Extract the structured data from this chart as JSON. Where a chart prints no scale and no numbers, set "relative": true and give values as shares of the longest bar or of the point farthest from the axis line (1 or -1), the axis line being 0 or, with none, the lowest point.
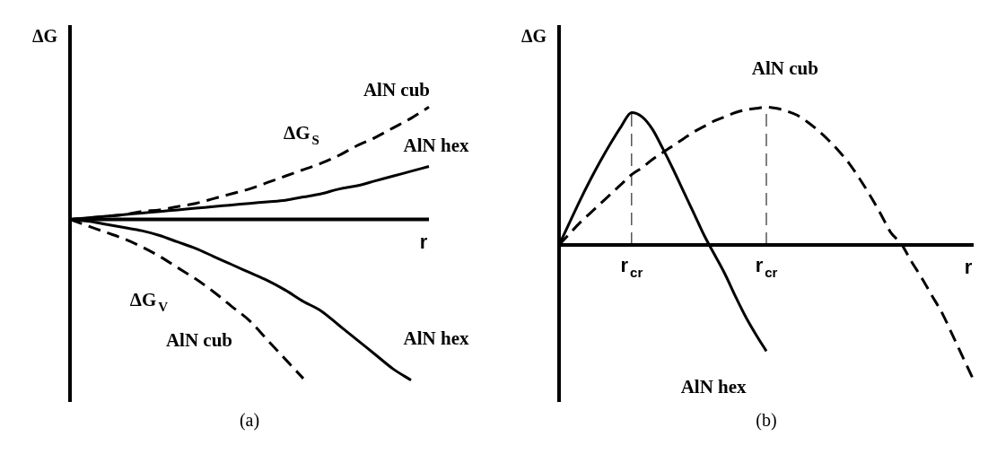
{
  "chart_data": [
    {
      "type": "line",
      "title": "(a)",
      "xlabel": "r",
      "ylabel": "ΔG",
      "relative": true,
      "annotations": [
        "ΔG$_{S}$",
        "ΔG$_{V}$"
      ],
      "categories": [
        null,
        null,
        null,
        null,
        null,
        null,
        null,
        null,
        null,
        null,
        null,
        null,
        null,
        null,
        null,
        null,
        null,
        null,
        null,
        null,
        null
      ],
      "series": [
        {
          "name": "AlN cub",
          "color": "#000000",
          "line_style": "dashed",
          "values": [
            0,
            0.01,
            0.02,
            0.03,
            0.05,
            0.06,
            0.08,
            0.1,
            0.13,
            0.16,
            0.19,
            0.23,
            0.27,
            0.31,
            0.35,
            0.4,
            0.46,
            0.51,
            0.57,
            0.63,
            0.7
          ]
        },
        {
          "name": "AlN hex",
          "color": "#000000",
          "line_style": "solid",
          "values": [
            0,
            0.01,
            0.02,
            0.03,
            0.04,
            0.05,
            0.06,
            0.07,
            0.08,
            0.09,
            0.1,
            0.11,
            0.12,
            0.14,
            0.16,
            0.19,
            0.21,
            0.24,
            0.27,
            0.3,
            0.33
          ]
        },
        {
          "name": "AlN cub",
          "color": "#000000",
          "line_style": "dashed",
          "values": [
            0,
            -0.04,
            -0.08,
            -0.12,
            -0.17,
            -0.23,
            -0.3,
            -0.37,
            -0.45,
            -0.54,
            -0.63,
            -0.75,
            -0.87,
            -0.99,
            null,
            null,
            null,
            null,
            null,
            null,
            null
          ]
        },
        {
          "name": "AlN hex",
          "color": "#000000",
          "line_style": "solid",
          "values": [
            0,
            -0.01,
            -0.03,
            -0.05,
            -0.07,
            -0.1,
            -0.14,
            -0.18,
            -0.23,
            -0.28,
            -0.33,
            -0.38,
            -0.44,
            -0.51,
            -0.57,
            -0.66,
            -0.75,
            -0.84,
            -0.93,
            -1,
            null
          ]
        }
      ]
    },
    {
      "type": "line",
      "title": "(b)",
      "xlabel": "r",
      "ylabel": "ΔG",
      "relative": true,
      "categories": [
        null,
        null,
        null,
        null,
        null,
        null,
        null,
        "r$_{cr}$",
        null,
        null,
        null,
        null,
        null,
        null,
        null,
        null,
        null,
        null,
        null,
        null,
        "r$_{cr}$",
        null,
        null,
        null,
        null,
        null,
        null,
        null,
        null,
        null,
        null,
        null,
        null,
        null,
        null,
        null,
        null,
        null,
        null,
        null,
        null
      ],
      "ref_lines": [
        {
          "axis": "x",
          "value": "r$_{cr}$",
          "line_style": "dashed",
          "color": "#000000"
        }
      ],
      "series": [
        {
          "name": "AlN hex",
          "color": "#000000",
          "line_style": "solid",
          "values": [
            0,
            0.16,
            0.32,
            0.47,
            0.61,
            0.74,
            0.86,
            0.96,
            0.93,
            0.84,
            0.7,
            0.55,
            0.39,
            0.23,
            0.07,
            -0.07,
            -0.21,
            -0.37,
            -0.52,
            -0.65,
            -0.77,
            null,
            null,
            null,
            null,
            null,
            null,
            null,
            null,
            null,
            null,
            null,
            null,
            null,
            null,
            null,
            null,
            null,
            null,
            null,
            null
          ]
        },
        {
          "name": "AlN cub",
          "color": "#000000",
          "line_style": "dashed",
          "values": [
            0,
            0.08,
            0.16,
            0.23,
            0.3,
            0.37,
            0.44,
            0.51,
            0.56,
            0.62,
            0.67,
            0.72,
            0.77,
            0.82,
            0.86,
            0.9,
            0.93,
            0.96,
            0.98,
            0.99,
            1.0,
            0.99,
            0.97,
            0.94,
            0.89,
            0.83,
            0.76,
            0.68,
            0.59,
            0.48,
            0.36,
            0.23,
            0.09,
            0.01,
            -0.12,
            -0.24,
            -0.37,
            -0.5,
            -0.66,
            -0.82,
            -0.98
          ]
        }
      ]
    }
  ]
}
